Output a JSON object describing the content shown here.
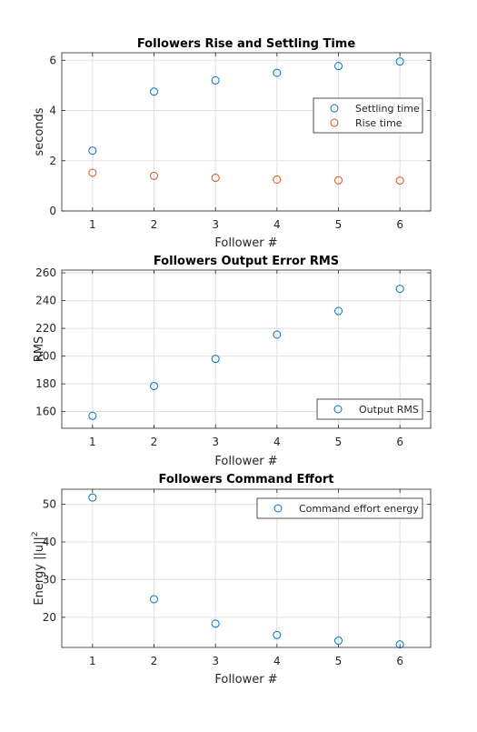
{
  "chart_data": [
    {
      "type": "scatter",
      "title": "Followers Rise and Settling Time",
      "xlabel": "Follower #",
      "ylabel": "seconds",
      "xlim": [
        0.5,
        6.5
      ],
      "ylim": [
        0,
        6.3
      ],
      "xticks": [
        1,
        2,
        3,
        4,
        5,
        6
      ],
      "yticks": [
        0,
        2,
        4,
        6
      ],
      "grid": true,
      "legend": "right",
      "series": [
        {
          "name": "Settling time",
          "color": "#0072BD",
          "x": [
            1,
            2,
            3,
            4,
            5,
            6
          ],
          "values": [
            2.4,
            4.75,
            5.2,
            5.5,
            5.77,
            5.95
          ]
        },
        {
          "name": "Rise time",
          "color": "#D95319",
          "x": [
            1,
            2,
            3,
            4,
            5,
            6
          ],
          "values": [
            1.52,
            1.4,
            1.32,
            1.25,
            1.22,
            1.21
          ]
        }
      ]
    },
    {
      "type": "scatter",
      "title": "Followers Output Error RMS",
      "xlabel": "Follower #",
      "ylabel": "RMS",
      "xlim": [
        0.5,
        6.5
      ],
      "ylim": [
        148,
        262
      ],
      "xticks": [
        1,
        2,
        3,
        4,
        5,
        6
      ],
      "yticks": [
        160,
        180,
        200,
        220,
        240,
        260
      ],
      "grid": true,
      "legend": "bottom-right",
      "series": [
        {
          "name": "Output RMS",
          "color": "#0072BD",
          "x": [
            1,
            2,
            3,
            4,
            5,
            6
          ],
          "values": [
            157,
            178.5,
            198,
            215.5,
            232.5,
            248.5
          ]
        }
      ]
    },
    {
      "type": "scatter",
      "title": "Followers Command Effort",
      "xlabel": "Follower #",
      "ylabel": "Energy ||u||²",
      "ylabel_main": "Energy ||u||",
      "ylabel_sup": "2",
      "xlim": [
        0.5,
        6.5
      ],
      "ylim": [
        12,
        54
      ],
      "xticks": [
        1,
        2,
        3,
        4,
        5,
        6
      ],
      "yticks": [
        20,
        30,
        40,
        50
      ],
      "grid": true,
      "legend": "top-right",
      "series": [
        {
          "name": "Command effort energy",
          "color": "#0072BD",
          "x": [
            1,
            2,
            3,
            4,
            5,
            6
          ],
          "values": [
            51.8,
            24.8,
            18.3,
            15.3,
            13.8,
            12.8
          ]
        }
      ]
    }
  ]
}
